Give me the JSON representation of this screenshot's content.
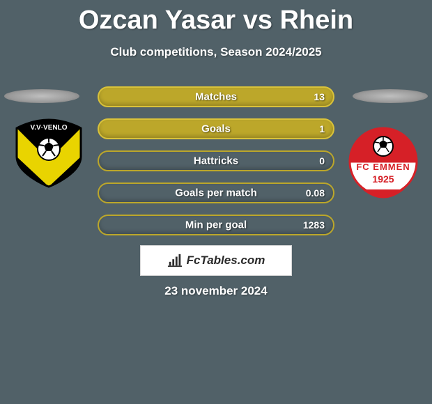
{
  "title": "Ozcan Yasar vs Rhein",
  "subtitle": "Club competitions, Season 2024/2025",
  "date": "23 november 2024",
  "brand": "FcTables.com",
  "clubs": {
    "left": {
      "name": "VVV-Venlo",
      "colors": {
        "shield": "#e9d400",
        "chevron": "#000000",
        "ball_bg": "#ffffff"
      }
    },
    "right": {
      "name": "FC Emmen",
      "colors": {
        "outer": "#ffffff",
        "red": "#d62027",
        "ball": "#000000",
        "year": "1925"
      }
    }
  },
  "bar_style": {
    "primary_fill": "#bca72a",
    "primary_border": "#d9c23a",
    "secondary_border": "#bca72a"
  },
  "stats": [
    {
      "label": "Matches",
      "value": "13",
      "filled": true
    },
    {
      "label": "Goals",
      "value": "1",
      "filled": true
    },
    {
      "label": "Hattricks",
      "value": "0",
      "filled": false
    },
    {
      "label": "Goals per match",
      "value": "0.08",
      "filled": false
    },
    {
      "label": "Min per goal",
      "value": "1283",
      "filled": false
    }
  ]
}
